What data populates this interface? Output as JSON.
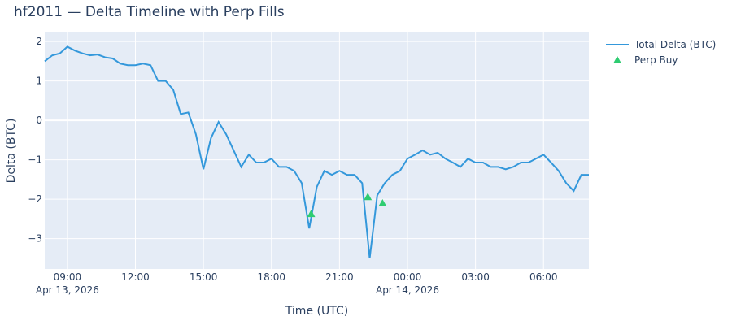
{
  "chart_data": {
    "type": "line",
    "title": "hf2011 — Delta Timeline with Perp Fills",
    "x_label": "Time (UTC)",
    "y_label": "Delta (BTC)",
    "xlim": [
      "2026-04-13 08:00",
      "2026-04-14 08:00"
    ],
    "xticks": [
      {
        "value": "2026-04-13 09:00",
        "label": "09:00\nApr 13, 2026"
      },
      {
        "value": "2026-04-13 12:00",
        "label": "12:00"
      },
      {
        "value": "2026-04-13 15:00",
        "label": "15:00"
      },
      {
        "value": "2026-04-13 18:00",
        "label": "18:00"
      },
      {
        "value": "2026-04-13 21:00",
        "label": "21:00"
      },
      {
        "value": "2026-04-14 00:00",
        "label": "00:00\nApr 14, 2026"
      },
      {
        "value": "2026-04-14 03:00",
        "label": "03:00"
      },
      {
        "value": "2026-04-14 06:00",
        "label": "06:00"
      }
    ],
    "ylim": [
      -3.77,
      2.23
    ],
    "yticks": [
      {
        "value": 2,
        "label": "2"
      },
      {
        "value": 1,
        "label": "1"
      },
      {
        "value": 0,
        "label": "0"
      },
      {
        "value": -1,
        "label": "−1"
      },
      {
        "value": -2,
        "label": "−2"
      },
      {
        "value": -3,
        "label": "−3"
      }
    ],
    "grid": true,
    "legend": "right",
    "series": [
      {
        "name": "Total Delta (BTC)",
        "type": "line",
        "color": "#3498db",
        "x": [
          "2026-04-13 08:00",
          "2026-04-13 08:20",
          "2026-04-13 08:40",
          "2026-04-13 09:00",
          "2026-04-13 09:20",
          "2026-04-13 09:40",
          "2026-04-13 10:00",
          "2026-04-13 10:20",
          "2026-04-13 10:40",
          "2026-04-13 11:00",
          "2026-04-13 11:20",
          "2026-04-13 11:40",
          "2026-04-13 12:00",
          "2026-04-13 12:20",
          "2026-04-13 12:40",
          "2026-04-13 13:00",
          "2026-04-13 13:20",
          "2026-04-13 13:40",
          "2026-04-13 14:00",
          "2026-04-13 14:20",
          "2026-04-13 14:40",
          "2026-04-13 15:00",
          "2026-04-13 15:20",
          "2026-04-13 15:40",
          "2026-04-13 16:00",
          "2026-04-13 16:20",
          "2026-04-13 16:40",
          "2026-04-13 17:00",
          "2026-04-13 17:20",
          "2026-04-13 17:40",
          "2026-04-13 18:00",
          "2026-04-13 18:20",
          "2026-04-13 18:40",
          "2026-04-13 19:00",
          "2026-04-13 19:20",
          "2026-04-13 19:40",
          "2026-04-13 20:00",
          "2026-04-13 20:20",
          "2026-04-13 20:40",
          "2026-04-13 21:00",
          "2026-04-13 21:20",
          "2026-04-13 21:40",
          "2026-04-13 22:00",
          "2026-04-13 22:20",
          "2026-04-13 22:40",
          "2026-04-13 23:00",
          "2026-04-13 23:20",
          "2026-04-13 23:40",
          "2026-04-14 00:00",
          "2026-04-14 00:20",
          "2026-04-14 00:40",
          "2026-04-14 01:00",
          "2026-04-14 01:20",
          "2026-04-14 01:40",
          "2026-04-14 02:00",
          "2026-04-14 02:20",
          "2026-04-14 02:40",
          "2026-04-14 03:00",
          "2026-04-14 03:20",
          "2026-04-14 03:40",
          "2026-04-14 04:00",
          "2026-04-14 04:20",
          "2026-04-14 04:40",
          "2026-04-14 05:00",
          "2026-04-14 05:20",
          "2026-04-14 05:40",
          "2026-04-14 06:00",
          "2026-04-14 06:20",
          "2026-04-14 06:40",
          "2026-04-14 07:00",
          "2026-04-14 07:20",
          "2026-04-14 07:40",
          "2026-04-14 08:00"
        ],
        "values": [
          1.5,
          1.65,
          1.7,
          1.87,
          1.77,
          1.7,
          1.65,
          1.67,
          1.6,
          1.57,
          1.44,
          1.4,
          1.4,
          1.44,
          1.4,
          1.0,
          1.0,
          0.78,
          0.16,
          0.2,
          -0.35,
          -1.24,
          -0.45,
          -0.04,
          -0.35,
          -0.76,
          -1.18,
          -0.87,
          -1.07,
          -1.07,
          -0.97,
          -1.18,
          -1.18,
          -1.28,
          -1.59,
          -2.74,
          -1.69,
          -1.28,
          -1.38,
          -1.28,
          -1.38,
          -1.38,
          -1.59,
          -3.5,
          -1.9,
          -1.59,
          -1.38,
          -1.28,
          -0.97,
          -0.87,
          -0.76,
          -0.87,
          -0.82,
          -0.97,
          -1.07,
          -1.18,
          -0.97,
          -1.07,
          -1.07,
          -1.18,
          -1.18,
          -1.24,
          -1.18,
          -1.07,
          -1.07,
          -0.97,
          -0.87,
          -1.07,
          -1.28,
          -1.59,
          -1.79,
          -1.38,
          -1.38
        ]
      },
      {
        "name": "Perp Buy",
        "type": "scatter",
        "color": "#2ecc71",
        "x": [
          "2026-04-13 19:45",
          "2026-04-13 22:15",
          "2026-04-13 22:54"
        ],
        "values": [
          -2.37,
          -1.94,
          -2.1
        ]
      }
    ]
  }
}
